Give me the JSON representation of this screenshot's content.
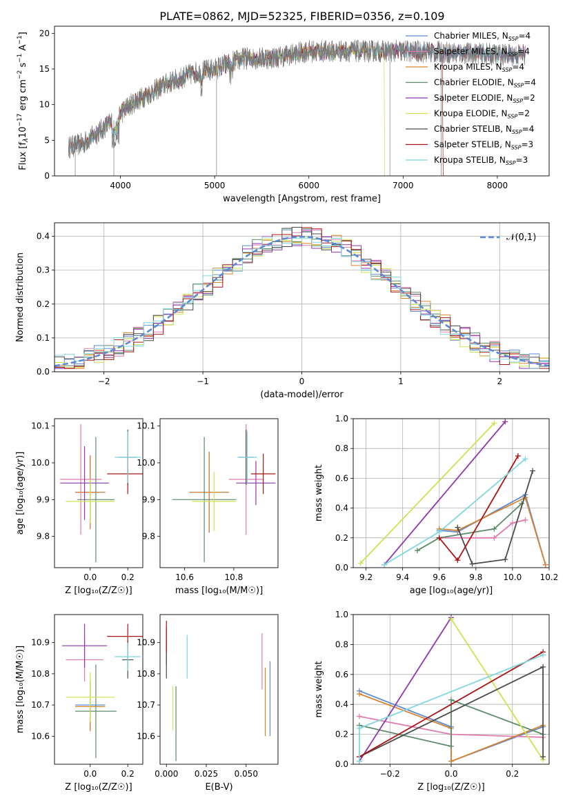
{
  "figure": {
    "title": "PLATE=0862, MJD=52325, FIBERID=0356, z=0.109"
  },
  "colors": {
    "Chabrier MILES": "#5b8bd6",
    "Salpeter MILES": "#e07ab0",
    "Kroupa MILES": "#d9822b",
    "Chabrier ELODIE": "#5b8a68",
    "Salpeter ELODIE": "#8e35b0",
    "Kroupa ELODIE": "#cde34e",
    "Chabrier STELIB": "#4a4a4a",
    "Salpeter STELIB": "#aa1414",
    "Kroupa STELIB": "#7fd6e0"
  },
  "chart_data": [
    {
      "id": "spectrum",
      "type": "line",
      "title": "PLATE=0862, MJD=52325, FIBERID=0356, z=0.109",
      "xlabel": "wavelength [Angstrom, rest frame]",
      "ylabel_parts": [
        "Flux [f",
        "λ",
        "10",
        "−17",
        " erg cm",
        "−2",
        " s",
        "−1",
        " A",
        "−1",
        "]"
      ],
      "xlim": [
        3300,
        8550
      ],
      "ylim": [
        0,
        21
      ],
      "xticks": [
        4000,
        5000,
        6000,
        7000,
        8000
      ],
      "yticks": [
        0,
        5,
        10,
        15,
        20
      ],
      "data_wavelength_range": [
        3450,
        8300
      ],
      "continuum_points": [
        [
          3450,
          4.0
        ],
        [
          3600,
          4.5
        ],
        [
          3800,
          6.5
        ],
        [
          3950,
          8.0
        ],
        [
          4100,
          10.0
        ],
        [
          4300,
          11.5
        ],
        [
          4500,
          13.0
        ],
        [
          4800,
          14.5
        ],
        [
          5000,
          15.0
        ],
        [
          5300,
          16.5
        ],
        [
          5600,
          16.5
        ],
        [
          6000,
          17.5
        ],
        [
          6500,
          17.5
        ],
        [
          7000,
          17.5
        ],
        [
          7500,
          17.3
        ],
        [
          8000,
          17.0
        ],
        [
          8300,
          17.0
        ]
      ],
      "legend": [
        {
          "model": "Chabrier MILES",
          "label": "Chabrier MILES, N",
          "sub": "SSP",
          "tail": "=4"
        },
        {
          "model": "Salpeter MILES",
          "label": "Salpeter MILES, N",
          "sub": "SSP",
          "tail": "=4"
        },
        {
          "model": "Kroupa MILES",
          "label": "Kroupa MILES, N",
          "sub": "SSP",
          "tail": "=4"
        },
        {
          "model": "Chabrier ELODIE",
          "label": "Chabrier ELODIE, N",
          "sub": "SSP",
          "tail": "=4"
        },
        {
          "model": "Salpeter ELODIE",
          "label": "Salpeter ELODIE, N",
          "sub": "SSP",
          "tail": "=2"
        },
        {
          "model": "Kroupa ELODIE",
          "label": "Kroupa ELODIE, N",
          "sub": "SSP",
          "tail": "=2"
        },
        {
          "model": "Chabrier STELIB",
          "label": "Chabrier STELIB, N",
          "sub": "SSP",
          "tail": "=4"
        },
        {
          "model": "Salpeter STELIB",
          "label": "Salpeter STELIB, N",
          "sub": "SSP",
          "tail": "=3"
        },
        {
          "model": "Kroupa STELIB",
          "label": "Kroupa STELIB, N",
          "sub": "SSP",
          "tail": "=3"
        }
      ]
    },
    {
      "id": "residuals",
      "type": "histogram",
      "xlabel": "(data-model)/error",
      "ylabel": "Normed distribution",
      "xlim": [
        -2.5,
        2.5
      ],
      "ylim": [
        0,
        0.44
      ],
      "xticks": [
        -2,
        -1,
        0,
        1,
        2
      ],
      "xtick_labels": [
        "−2",
        "−1",
        "0",
        "1",
        "2"
      ],
      "yticks": [
        0.0,
        0.1,
        0.2,
        0.3,
        0.4
      ],
      "ytick_labels": [
        "0.0",
        "0.1",
        "0.2",
        "0.3",
        "0.4"
      ],
      "grid": true,
      "bin_width": 0.1,
      "reference_curve": {
        "name": "𝒩(0,1)",
        "mean": 0,
        "sigma": 1
      }
    },
    {
      "id": "age-vs-Z",
      "type": "errorbar",
      "xlabel": "Z [log₁₀(Z/Z☉)]",
      "ylabel": "age  [log₁₀(age/yr)]",
      "xlim": [
        -0.19,
        0.28
      ],
      "ylim": [
        9.715,
        10.12
      ],
      "xticks": [
        0.0,
        0.2
      ],
      "xtick_labels": [
        "0.0",
        "0.2"
      ],
      "yticks": [
        9.8,
        9.9,
        10.0,
        10.1
      ],
      "ytick_labels": [
        "9.8",
        "9.9",
        "10.0",
        "10.1"
      ],
      "points": [
        {
          "model": "Chabrier MILES",
          "x": 0.0,
          "xerr": 0.08,
          "y": 9.92,
          "yerr": 0.1
        },
        {
          "model": "Salpeter MILES",
          "x": -0.05,
          "xerr": 0.11,
          "y": 9.955,
          "yerr": 0.15
        },
        {
          "model": "Kroupa MILES",
          "x": 0.0,
          "xerr": 0.08,
          "y": 9.92,
          "yerr": 0.1
        },
        {
          "model": "Chabrier ELODIE",
          "x": 0.03,
          "xerr": 0.1,
          "y": 9.9,
          "yerr": 0.17
        },
        {
          "model": "Salpeter ELODIE",
          "x": -0.03,
          "xerr": 0.13,
          "y": 9.945,
          "yerr": 0.1
        },
        {
          "model": "Kroupa ELODIE",
          "x": 0.0,
          "xerr": 0.13,
          "y": 9.895,
          "yerr": 0.06
        },
        {
          "model": "Chabrier STELIB",
          "x": 0.2,
          "xerr": 0.05,
          "y": 10.015,
          "yerr": 0.075
        },
        {
          "model": "Salpeter STELIB",
          "x": 0.2,
          "xerr": 0.11,
          "y": 9.97,
          "yerr": 0.055
        },
        {
          "model": "Kroupa STELIB",
          "x": 0.2,
          "xerr": 0.07,
          "y": 10.015,
          "yerr": 0.07
        }
      ]
    },
    {
      "id": "age-vs-mass",
      "type": "errorbar",
      "xlabel": "mass [log₁₀(M/M☉)]",
      "ylabel": "",
      "xlim": [
        10.5,
        10.98
      ],
      "ylim": [
        9.715,
        10.12
      ],
      "xticks": [
        10.6,
        10.8
      ],
      "xtick_labels": [
        "10.6",
        "10.8"
      ],
      "yticks": [
        9.8,
        9.9,
        10.0,
        10.1
      ],
      "ytick_labels": [
        "9.8",
        "9.9",
        "10.0",
        "10.1"
      ],
      "points": [
        {
          "model": "Chabrier MILES",
          "x": 10.7,
          "xerr": 0.08,
          "y": 9.92,
          "yerr": 0.11
        },
        {
          "model": "Salpeter MILES",
          "x": 10.85,
          "xerr": 0.07,
          "y": 9.955,
          "yerr": 0.15
        },
        {
          "model": "Kroupa MILES",
          "x": 10.7,
          "xerr": 0.08,
          "y": 9.92,
          "yerr": 0.11
        },
        {
          "model": "Chabrier ELODIE",
          "x": 10.68,
          "xerr": 0.13,
          "y": 9.9,
          "yerr": 0.17
        },
        {
          "model": "Salpeter ELODIE",
          "x": 10.89,
          "xerr": 0.08,
          "y": 9.945,
          "yerr": 0.06
        },
        {
          "model": "Kroupa ELODIE",
          "x": 10.72,
          "xerr": 0.09,
          "y": 9.895,
          "yerr": 0.08
        },
        {
          "model": "Chabrier STELIB",
          "x": 10.85,
          "xerr": 0.03,
          "y": 10.015,
          "yerr": 0.075
        },
        {
          "model": "Salpeter STELIB",
          "x": 10.92,
          "xerr": 0.05,
          "y": 9.97,
          "yerr": 0.055
        },
        {
          "model": "Kroupa STELIB",
          "x": 10.855,
          "xerr": 0.04,
          "y": 10.015,
          "yerr": 0.07
        }
      ]
    },
    {
      "id": "massweight-vs-age",
      "type": "line",
      "xlabel": "age  [log₁₀(age/yr)]",
      "ylabel": "mass weight",
      "xlim": [
        9.13,
        10.2
      ],
      "ylim": [
        0,
        1.0
      ],
      "xticks": [
        9.2,
        9.4,
        9.6,
        9.8,
        10.0,
        10.2
      ],
      "xtick_labels": [
        "9.2",
        "9.4",
        "9.6",
        "9.8",
        "10.0",
        "10.2"
      ],
      "yticks": [
        0.0,
        0.2,
        0.4,
        0.6,
        0.8,
        1.0
      ],
      "ytick_labels": [
        "0.0",
        "0.2",
        "0.4",
        "0.6",
        "0.8",
        "1.0"
      ],
      "grid": true,
      "series": [
        {
          "model": "Chabrier MILES",
          "x": [
            9.6,
            9.7,
            10.07,
            10.18
          ],
          "y": [
            0.25,
            0.24,
            0.49,
            0.02
          ]
        },
        {
          "model": "Salpeter MILES",
          "x": [
            9.6,
            9.9,
            10.0,
            10.07
          ],
          "y": [
            0.2,
            0.2,
            0.3,
            0.32
          ]
        },
        {
          "model": "Kroupa MILES",
          "x": [
            9.6,
            9.7,
            10.07,
            10.18
          ],
          "y": [
            0.26,
            0.25,
            0.47,
            0.02
          ]
        },
        {
          "model": "Chabrier ELODIE",
          "x": [
            9.48,
            9.6,
            9.9,
            10.05
          ],
          "y": [
            0.115,
            0.2,
            0.26,
            0.43
          ]
        },
        {
          "model": "Salpeter ELODIE",
          "x": [
            9.3,
            9.96
          ],
          "y": [
            0.02,
            0.98
          ]
        },
        {
          "model": "Kroupa ELODIE",
          "x": [
            9.17,
            9.9
          ],
          "y": [
            0.03,
            0.97
          ]
        },
        {
          "model": "Chabrier STELIB",
          "x": [
            9.7,
            9.78,
            9.96,
            10.11
          ],
          "y": [
            0.27,
            0.025,
            0.055,
            0.65
          ]
        },
        {
          "model": "Salpeter STELIB",
          "x": [
            9.6,
            9.7,
            10.03
          ],
          "y": [
            0.2,
            0.05,
            0.75
          ]
        },
        {
          "model": "Kroupa STELIB",
          "x": [
            9.3,
            9.6,
            10.07
          ],
          "y": [
            0.02,
            0.24,
            0.73
          ]
        }
      ]
    },
    {
      "id": "mass-vs-Z",
      "type": "errorbar",
      "xlabel": "Z [log₁₀(Z/Z☉)]",
      "ylabel": "mass [log₁₀(M/M☉)]",
      "xlim": [
        -0.19,
        0.28
      ],
      "ylim": [
        10.51,
        10.99
      ],
      "xticks": [
        0.0,
        0.2
      ],
      "xtick_labels": [
        "0.0",
        "0.2"
      ],
      "yticks": [
        10.6,
        10.7,
        10.8,
        10.9
      ],
      "ytick_labels": [
        "10.6",
        "10.7",
        "10.8",
        "10.9"
      ],
      "points": [
        {
          "model": "Chabrier MILES",
          "x": 0.0,
          "xerr": 0.08,
          "y": 10.7,
          "yerr": 0.08
        },
        {
          "model": "Salpeter MILES",
          "x": -0.03,
          "xerr": 0.1,
          "y": 10.845,
          "yerr": 0.07
        },
        {
          "model": "Kroupa MILES",
          "x": 0.0,
          "xerr": 0.08,
          "y": 10.695,
          "yerr": 0.08
        },
        {
          "model": "Chabrier ELODIE",
          "x": 0.03,
          "xerr": 0.11,
          "y": 10.68,
          "yerr": 0.15
        },
        {
          "model": "Salpeter ELODIE",
          "x": -0.03,
          "xerr": 0.12,
          "y": 10.89,
          "yerr": 0.07
        },
        {
          "model": "Kroupa ELODIE",
          "x": 0.0,
          "xerr": 0.13,
          "y": 10.725,
          "yerr": 0.08
        },
        {
          "model": "Chabrier STELIB",
          "x": 0.2,
          "xerr": 0.03,
          "y": 10.845,
          "yerr": 0.06
        },
        {
          "model": "Salpeter STELIB",
          "x": 0.2,
          "xerr": 0.11,
          "y": 10.92,
          "yerr": 0.04
        },
        {
          "model": "Kroupa STELIB",
          "x": 0.2,
          "xerr": 0.07,
          "y": 10.855,
          "yerr": 0.045
        }
      ]
    },
    {
      "id": "mass-vs-EBV",
      "type": "errorbar",
      "xlabel": "E(B-V)",
      "ylabel": "",
      "xlim": [
        -0.004,
        0.07
      ],
      "ylim": [
        10.51,
        10.99
      ],
      "xticks": [
        0.0,
        0.025,
        0.05
      ],
      "xtick_labels": [
        "0.000",
        "0.025",
        "0.050"
      ],
      "yticks": [
        10.6,
        10.7,
        10.8,
        10.9
      ],
      "ytick_labels": [
        "10.6",
        "10.7",
        "10.8",
        "10.9"
      ],
      "points": [
        {
          "model": "Chabrier MILES",
          "x": 0.065,
          "xerr": 0.0,
          "y": 10.72,
          "yerr": 0.12
        },
        {
          "model": "Salpeter MILES",
          "x": 0.06,
          "xerr": 0.0,
          "y": 10.84,
          "yerr": 0.09
        },
        {
          "model": "Kroupa MILES",
          "x": 0.062,
          "xerr": 0.0,
          "y": 10.71,
          "yerr": 0.11
        },
        {
          "model": "Chabrier ELODIE",
          "x": 0.006,
          "xerr": 0.0,
          "y": 10.64,
          "yerr": 0.12
        },
        {
          "model": "Salpeter ELODIE",
          "x": 0.0,
          "xerr": 0.0,
          "y": 10.89,
          "yerr": 0.06
        },
        {
          "model": "Kroupa ELODIE",
          "x": 0.004,
          "xerr": 0.0,
          "y": 10.69,
          "yerr": 0.07
        },
        {
          "model": "Chabrier STELIB",
          "x": 0.0,
          "xerr": 0.0,
          "y": 10.845,
          "yerr": 0.06
        },
        {
          "model": "Salpeter STELIB",
          "x": 0.0,
          "xerr": 0.0,
          "y": 10.92,
          "yerr": 0.05
        },
        {
          "model": "Kroupa STELIB",
          "x": 0.013,
          "xerr": 0.0,
          "y": 10.855,
          "yerr": 0.07
        }
      ]
    },
    {
      "id": "massweight-vs-Z",
      "type": "line",
      "xlabel": "Z [log₁₀(Z/Z☉)]",
      "ylabel": "mass weight",
      "xlim": [
        -0.32,
        0.32
      ],
      "ylim": [
        0,
        1.0
      ],
      "xticks": [
        -0.2,
        0.0,
        0.2
      ],
      "xtick_labels": [
        "−0.2",
        "0.0",
        "0.2"
      ],
      "yticks": [
        0.0,
        0.2,
        0.4,
        0.6,
        0.8,
        1.0
      ],
      "ytick_labels": [
        "0.0",
        "0.2",
        "0.4",
        "0.6",
        "0.8",
        "1.0"
      ],
      "grid": true,
      "series": [
        {
          "model": "Chabrier MILES",
          "x": [
            -0.3,
            0.0,
            0.0,
            0.3
          ],
          "y": [
            0.49,
            0.25,
            0.02,
            0.25
          ]
        },
        {
          "model": "Salpeter MILES",
          "x": [
            -0.3,
            0.0,
            0.3
          ],
          "y": [
            0.32,
            0.2,
            0.18
          ]
        },
        {
          "model": "Kroupa MILES",
          "x": [
            -0.3,
            0.0,
            0.0,
            0.3
          ],
          "y": [
            0.47,
            0.24,
            0.02,
            0.26
          ]
        },
        {
          "model": "Chabrier ELODIE",
          "x": [
            -0.3,
            0.0,
            0.0,
            0.3
          ],
          "y": [
            0.26,
            0.12,
            0.43,
            0.2
          ]
        },
        {
          "model": "Salpeter ELODIE",
          "x": [
            -0.3,
            0.0
          ],
          "y": [
            0.02,
            0.98
          ]
        },
        {
          "model": "Kroupa ELODIE",
          "x": [
            0.0,
            0.3
          ],
          "y": [
            0.97,
            0.03
          ]
        },
        {
          "model": "Chabrier STELIB",
          "x": [
            -0.3,
            0.3,
            0.3
          ],
          "y": [
            0.05,
            0.65,
            0.05
          ]
        },
        {
          "model": "Salpeter STELIB",
          "x": [
            -0.3,
            0.3
          ],
          "y": [
            0.05,
            0.75
          ]
        },
        {
          "model": "Kroupa STELIB",
          "x": [
            -0.3,
            -0.3,
            0.3
          ],
          "y": [
            0.02,
            0.24,
            0.73
          ]
        }
      ]
    }
  ]
}
